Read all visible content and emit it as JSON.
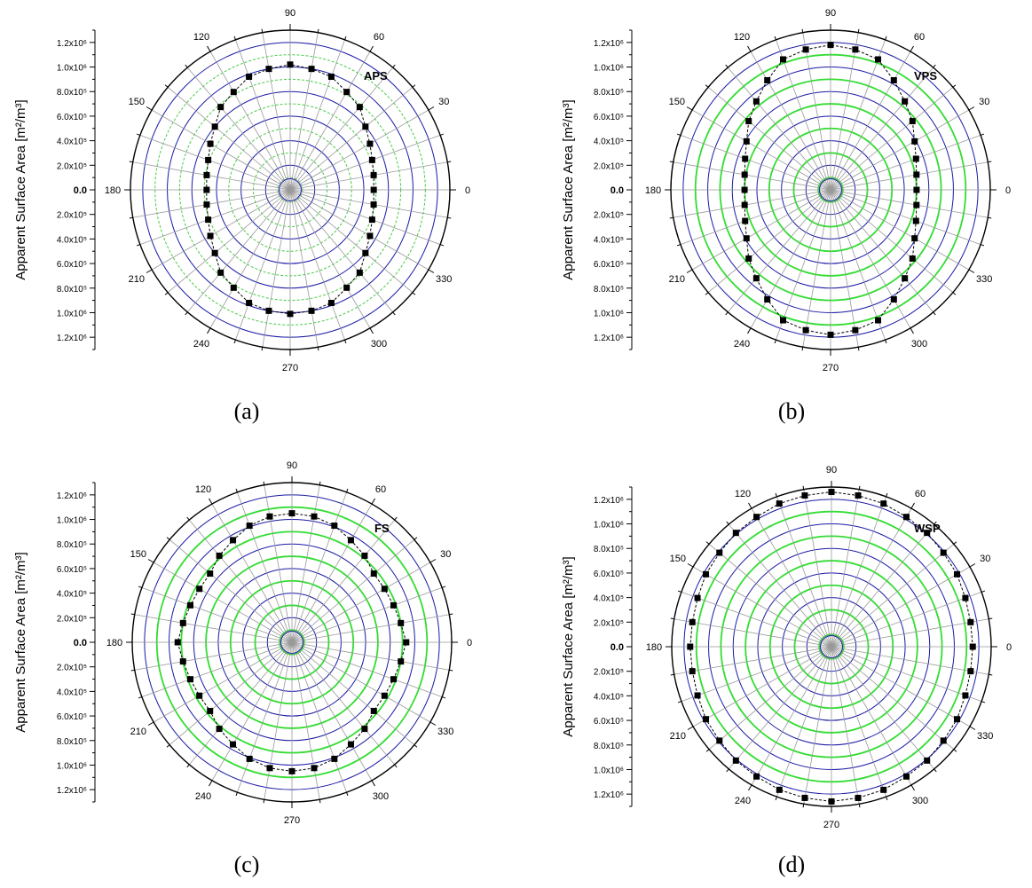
{
  "figure": {
    "ylabel": "Apparent Surface Area [m²/m³]",
    "angle_labels": [
      "0",
      "30",
      "60",
      "90",
      "120",
      "150",
      "180",
      "210",
      "240",
      "270",
      "300",
      "330"
    ],
    "radial_tick_labels_upper": [
      "1.2x10⁶",
      "1.0x10⁶",
      "8.0x10⁵",
      "6.0x10⁵",
      "4.0x10⁵",
      "2.0x10⁵",
      "0.0"
    ],
    "radial_tick_labels_lower": [
      "2.0x10⁵",
      "4.0x10⁵",
      "6.0x10⁵",
      "8.0x10⁵",
      "1.0x10⁶",
      "1.2x10⁶"
    ],
    "colors": {
      "major_ring": "#1a1aa6",
      "minor_ring_a": "#44cc44",
      "minor_ring_bcd": "#33dd33",
      "spokes": "#999999",
      "data": "#000000"
    }
  },
  "chart_data": [
    {
      "type": "scatter",
      "coordinate_system": "polar",
      "caption": "(a)",
      "title": "APS",
      "theta_unit": "degrees",
      "r_lim": [
        0,
        1300000
      ],
      "theta": [
        0,
        10,
        20,
        30,
        40,
        50,
        60,
        70,
        80,
        90,
        100,
        110,
        120,
        130,
        140,
        150,
        160,
        170,
        180,
        190,
        200,
        210,
        220,
        230,
        240,
        250,
        260,
        270,
        280,
        290,
        300,
        310,
        320,
        330,
        340,
        350
      ],
      "r": [
        680000,
        690000,
        710000,
        750000,
        800000,
        880000,
        920000,
        980000,
        1000000,
        1020000,
        1000000,
        980000,
        920000,
        880000,
        800000,
        750000,
        710000,
        690000,
        680000,
        690000,
        710000,
        750000,
        800000,
        880000,
        920000,
        980000,
        1000000,
        1010000,
        1000000,
        980000,
        920000,
        880000,
        800000,
        750000,
        710000,
        690000
      ]
    },
    {
      "type": "scatter",
      "coordinate_system": "polar",
      "caption": "(b)",
      "title": "VPS",
      "theta_unit": "degrees",
      "r_lim": [
        0,
        1300000
      ],
      "theta": [
        0,
        10,
        20,
        30,
        40,
        50,
        60,
        70,
        80,
        90,
        100,
        110,
        120,
        130,
        140,
        150,
        160,
        170,
        180,
        190,
        200,
        210,
        220,
        230,
        240,
        250,
        260,
        270,
        280,
        290,
        300,
        310,
        320,
        330,
        340,
        350
      ],
      "r": [
        700000,
        710000,
        740000,
        790000,
        870000,
        940000,
        1030000,
        1130000,
        1160000,
        1180000,
        1160000,
        1130000,
        1030000,
        940000,
        870000,
        790000,
        740000,
        710000,
        700000,
        710000,
        740000,
        790000,
        870000,
        940000,
        1030000,
        1130000,
        1160000,
        1180000,
        1160000,
        1130000,
        1030000,
        940000,
        870000,
        790000,
        740000,
        710000
      ]
    },
    {
      "type": "scatter",
      "coordinate_system": "polar",
      "caption": "(c)",
      "title": "FS",
      "theta_unit": "degrees",
      "r_lim": [
        0,
        1300000
      ],
      "theta": [
        0,
        10,
        20,
        30,
        40,
        50,
        60,
        70,
        80,
        90,
        100,
        110,
        120,
        130,
        140,
        150,
        160,
        170,
        180,
        190,
        200,
        210,
        220,
        230,
        240,
        250,
        260,
        270,
        280,
        290,
        300,
        310,
        320,
        330,
        340,
        350
      ],
      "r": [
        930000,
        900000,
        880000,
        870000,
        870000,
        920000,
        960000,
        1010000,
        1040000,
        1050000,
        1040000,
        1010000,
        960000,
        920000,
        870000,
        870000,
        880000,
        900000,
        930000,
        900000,
        880000,
        870000,
        870000,
        920000,
        960000,
        1010000,
        1040000,
        1050000,
        1040000,
        1010000,
        960000,
        920000,
        870000,
        870000,
        880000,
        900000
      ]
    },
    {
      "type": "scatter",
      "coordinate_system": "polar",
      "caption": "(d)",
      "title": "WSP",
      "theta_unit": "degrees",
      "r_lim": [
        0,
        1300000
      ],
      "theta": [
        0,
        10,
        20,
        30,
        40,
        50,
        60,
        70,
        80,
        90,
        100,
        110,
        120,
        130,
        140,
        150,
        160,
        170,
        180,
        190,
        200,
        210,
        220,
        230,
        240,
        250,
        260,
        270,
        280,
        290,
        300,
        310,
        320,
        330,
        340,
        350
      ],
      "r": [
        1150000,
        1150000,
        1160000,
        1180000,
        1190000,
        1210000,
        1220000,
        1240000,
        1250000,
        1260000,
        1250000,
        1240000,
        1220000,
        1210000,
        1190000,
        1180000,
        1160000,
        1150000,
        1150000,
        1150000,
        1160000,
        1180000,
        1190000,
        1210000,
        1220000,
        1240000,
        1250000,
        1260000,
        1250000,
        1240000,
        1220000,
        1210000,
        1190000,
        1180000,
        1160000,
        1150000
      ]
    }
  ]
}
